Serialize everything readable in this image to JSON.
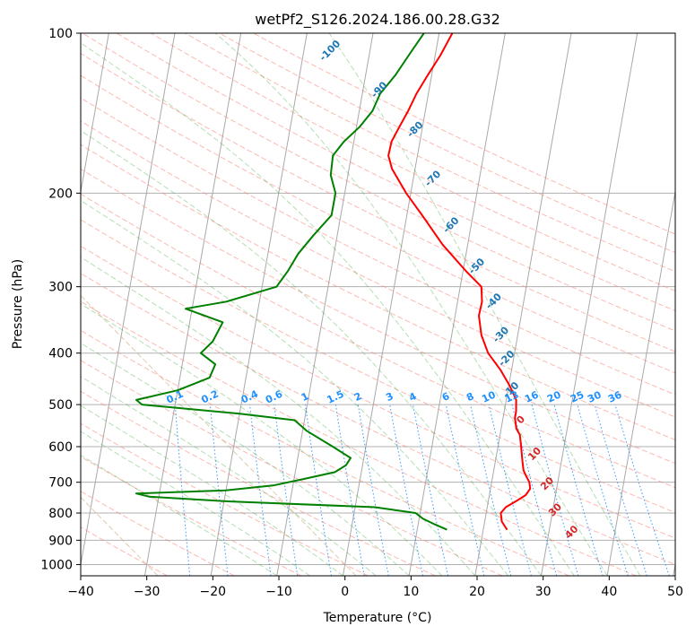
{
  "chart_data": {
    "type": "line",
    "title": "wetPf2_S126.2024.186.00.28.G32",
    "xlabel": "Temperature (°C)",
    "ylabel": "Pressure (hPa)",
    "xlim": [
      -40,
      50
    ],
    "ylim": [
      1050,
      100
    ],
    "y_scale": "log",
    "x_ticks": [
      -40,
      -30,
      -20,
      -10,
      0,
      10,
      20,
      30,
      40,
      50
    ],
    "y_ticks": [
      100,
      200,
      300,
      400,
      500,
      600,
      700,
      800,
      900,
      1000
    ],
    "grid": true,
    "skew": true,
    "series": [
      {
        "role": "temperature",
        "color": "#ff0000",
        "points": [
          [
            860,
            23.6
          ],
          [
            830,
            22.6
          ],
          [
            800,
            22.2
          ],
          [
            780,
            22.8
          ],
          [
            760,
            24.2
          ],
          [
            740,
            25.5
          ],
          [
            720,
            26.0
          ],
          [
            700,
            25.7
          ],
          [
            680,
            25.0
          ],
          [
            665,
            24.5
          ],
          [
            640,
            24.1
          ],
          [
            600,
            23.5
          ],
          [
            570,
            23.0
          ],
          [
            555,
            22.3
          ],
          [
            530,
            21.8
          ],
          [
            515,
            21.8
          ],
          [
            490,
            21.5
          ],
          [
            460,
            20.1
          ],
          [
            430,
            18.3
          ],
          [
            400,
            16.0
          ],
          [
            370,
            14.5
          ],
          [
            340,
            13.6
          ],
          [
            320,
            13.7
          ],
          [
            300,
            13.2
          ],
          [
            280,
            10.4
          ],
          [
            250,
            6.2
          ],
          [
            220,
            2.3
          ],
          [
            200,
            -0.7
          ],
          [
            180,
            -3.5
          ],
          [
            170,
            -4.4
          ],
          [
            160,
            -4.3
          ],
          [
            150,
            -3.5
          ],
          [
            140,
            -2.6
          ],
          [
            130,
            -1.8
          ],
          [
            120,
            -0.6
          ],
          [
            110,
            0.8
          ],
          [
            100,
            2.0
          ]
        ]
      },
      {
        "role": "dewpoint",
        "color": "#008000",
        "points": [
          [
            860,
            14.5
          ],
          [
            840,
            12.5
          ],
          [
            820,
            10.6
          ],
          [
            800,
            9.3
          ],
          [
            780,
            3.0
          ],
          [
            760,
            -20.0
          ],
          [
            745,
            -31.5
          ],
          [
            735,
            -33.5
          ],
          [
            725,
            -20.0
          ],
          [
            710,
            -13.0
          ],
          [
            690,
            -8.5
          ],
          [
            670,
            -4.0
          ],
          [
            650,
            -2.5
          ],
          [
            630,
            -2.0
          ],
          [
            600,
            -5.0
          ],
          [
            560,
            -9.4
          ],
          [
            535,
            -11.5
          ],
          [
            520,
            -20.0
          ],
          [
            500,
            -35.0
          ],
          [
            490,
            -36.0
          ],
          [
            470,
            -30.0
          ],
          [
            445,
            -25.5
          ],
          [
            420,
            -25.0
          ],
          [
            400,
            -27.5
          ],
          [
            380,
            -26.0
          ],
          [
            350,
            -25.0
          ],
          [
            330,
            -31.0
          ],
          [
            320,
            -25.0
          ],
          [
            300,
            -17.8
          ],
          [
            280,
            -16.5
          ],
          [
            260,
            -15.4
          ],
          [
            240,
            -13.6
          ],
          [
            220,
            -11.4
          ],
          [
            200,
            -11.4
          ],
          [
            185,
            -12.6
          ],
          [
            170,
            -12.8
          ],
          [
            160,
            -11.5
          ],
          [
            150,
            -9.5
          ],
          [
            140,
            -8.0
          ],
          [
            130,
            -7.3
          ],
          [
            120,
            -5.5
          ],
          [
            110,
            -4.0
          ],
          [
            100,
            -2.3
          ]
        ]
      }
    ],
    "guide_lines": {
      "isotherm_step": 10,
      "dry_adiabat_color": "#fa8072",
      "moist_adiabat_color": "#2ca02c",
      "mixing_ratio_color": "#1e90ff",
      "height_color": "#d2b48c"
    },
    "annotations": {
      "blue_labels": [
        {
          "text": "-100",
          "t": -16.0,
          "p": 108
        },
        {
          "text": "-90",
          "t": -7.5,
          "p": 128
        },
        {
          "text": "-80",
          "t": -1.0,
          "p": 152
        },
        {
          "text": "-70",
          "t": 3.0,
          "p": 188
        },
        {
          "text": "-60",
          "t": 7.0,
          "p": 230
        },
        {
          "text": "-50",
          "t": 12.0,
          "p": 275
        },
        {
          "text": "-40",
          "t": 15.5,
          "p": 320
        },
        {
          "text": "-30",
          "t": 17.5,
          "p": 370
        },
        {
          "text": "-20",
          "t": 19.0,
          "p": 410
        },
        {
          "text": "-10",
          "t": 20.5,
          "p": 470
        }
      ],
      "red_labels": [
        {
          "text": "0",
          "t": 22.8,
          "p": 535
        },
        {
          "text": "10",
          "t": 25.8,
          "p": 620
        },
        {
          "text": "20",
          "t": 28.5,
          "p": 705
        },
        {
          "text": "30",
          "t": 30.4,
          "p": 790
        },
        {
          "text": "40",
          "t": 33.5,
          "p": 870
        }
      ],
      "mixing_ratio_labels": [
        {
          "text": "0.1",
          "t": -30.0
        },
        {
          "text": "0.2",
          "t": -24.7
        },
        {
          "text": "0.4",
          "t": -18.7
        },
        {
          "text": "0.6",
          "t": -15.0
        },
        {
          "text": "1",
          "t": -10.3
        },
        {
          "text": "1.5",
          "t": -5.7
        },
        {
          "text": "2",
          "t": -2.3
        },
        {
          "text": "3",
          "t": 2.5
        },
        {
          "text": "4",
          "t": 6.0
        },
        {
          "text": "6",
          "t": 11.0
        },
        {
          "text": "8",
          "t": 14.7
        },
        {
          "text": "10",
          "t": 17.5
        },
        {
          "text": "13",
          "t": 21.0
        },
        {
          "text": "16",
          "t": 24.0
        },
        {
          "text": "20",
          "t": 27.4
        },
        {
          "text": "25",
          "t": 30.9
        },
        {
          "text": "30",
          "t": 33.5
        },
        {
          "text": "36",
          "t": 36.6
        }
      ]
    }
  }
}
